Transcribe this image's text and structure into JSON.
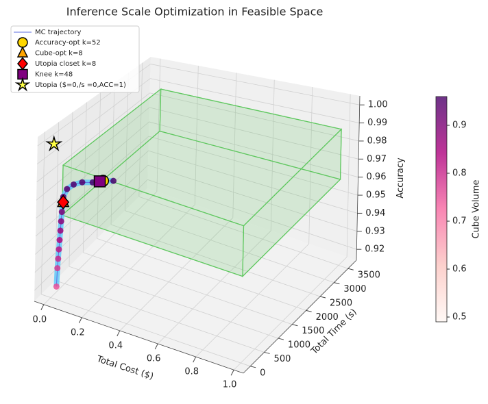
{
  "chart_data": {
    "type": "scatter3d",
    "title": "Inference Scale Optimization in Feasible Space",
    "xlabel": "Total Cost ($)",
    "ylabel": "Total Time (s)",
    "zlabel": "Accuracy",
    "xlim": [
      -0.05,
      1.05
    ],
    "xticks": [
      {
        "value": 0,
        "label": "0.0"
      },
      0.2,
      0.4,
      0.6,
      0.8,
      {
        "value": 1,
        "label": "1.0"
      }
    ],
    "ylim": [
      -250,
      3800
    ],
    "yticks": [
      0,
      500,
      1000,
      1500,
      2000,
      2500,
      3000,
      3500
    ],
    "zlim": [
      0.914,
      1.005
    ],
    "zticks": [
      0.92,
      0.93,
      0.94,
      0.95,
      0.96,
      0.97,
      0.98,
      0.99,
      {
        "value": 1,
        "label": "1.00"
      }
    ],
    "grid": true,
    "legend": "upper left",
    "feasible_region": {
      "x": [
        0.05,
        1.0
      ],
      "y": [
        0,
        3500
      ],
      "z": [
        0.962,
        0.99
      ],
      "color": "#5fc85f"
    },
    "series": [
      {
        "name": "MC trajectory",
        "color": "#5b6ee1",
        "x": [
          0.02,
          0.02,
          0.02,
          0.02,
          0.02,
          0.02,
          0.02,
          0.02,
          0.02,
          0.02,
          0.03,
          0.05,
          0.08,
          0.12,
          0.16,
          0.2
        ],
        "y": [
          60,
          80,
          100,
          120,
          140,
          160,
          180,
          200,
          220,
          240,
          300,
          400,
          500,
          600,
          700,
          800
        ],
        "z": [
          0.92,
          0.93,
          0.935,
          0.94,
          0.945,
          0.95,
          0.955,
          0.96,
          0.965,
          0.968,
          0.972,
          0.974,
          0.975,
          0.975,
          0.976,
          0.976
        ],
        "volumes": [
          0.75,
          0.78,
          0.8,
          0.82,
          0.84,
          0.86,
          0.88,
          0.9,
          0.92,
          0.93,
          0.94,
          0.95,
          0.95,
          0.96,
          0.96,
          0.96
        ]
      }
    ],
    "markers": [
      {
        "name": "Accuracy-opt k=52",
        "shape": "circle",
        "color": "#ffd700",
        "x": 0.16,
        "y": 700,
        "z": 0.976
      },
      {
        "name": "Cube-opt k=8",
        "shape": "triangle",
        "color": "#ffa500",
        "x": 0.02,
        "y": 240,
        "z": 0.965
      },
      {
        "name": "Utopia closet k=8",
        "shape": "diamond",
        "color": "#ff0000",
        "x": 0.02,
        "y": 240,
        "z": 0.965
      },
      {
        "name": "Knee k=48",
        "shape": "square",
        "color": "#800080",
        "x": 0.15,
        "y": 650,
        "z": 0.976
      },
      {
        "name": "Utopia ($=0,/s =0,ACC=1)",
        "shape": "star",
        "color": "#ffff44",
        "x": 0,
        "y": 0,
        "z": 1
      }
    ],
    "colorbar": {
      "label": "Cube Volume",
      "lim": [
        0.49,
        0.96
      ],
      "ticks": [
        0.5,
        0.6,
        0.7,
        0.8,
        0.9
      ],
      "colormap": "RdPu"
    }
  }
}
